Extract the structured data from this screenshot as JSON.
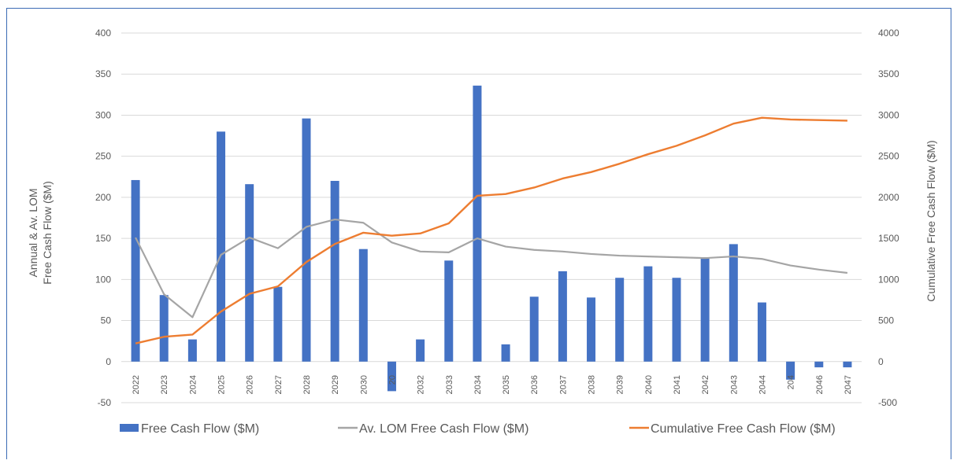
{
  "chart_data": {
    "type": "bar",
    "categories": [
      "2022",
      "2023",
      "2024",
      "2025",
      "2026",
      "2027",
      "2028",
      "2029",
      "2030",
      "2031",
      "2032",
      "2033",
      "2034",
      "2035",
      "2036",
      "2037",
      "2038",
      "2039",
      "2040",
      "2041",
      "2042",
      "2043",
      "2044",
      "2045",
      "2046",
      "2047"
    ],
    "category_labels_shown": [
      "2022",
      "2023",
      "2024",
      "2025",
      "2026",
      "2027",
      "2028",
      "2029",
      "2030",
      "20",
      "2032",
      "2033",
      "2034",
      "2035",
      "2036",
      "2037",
      "2038",
      "2039",
      "2040",
      "2041",
      "2042",
      "2043",
      "2044",
      "204",
      "2046",
      "2047"
    ],
    "series": [
      {
        "name": "Free Cash Flow ($M)",
        "type": "bar",
        "axis": "left",
        "color": "#4472c4",
        "values": [
          221,
          81,
          27,
          280,
          216,
          91,
          296,
          220,
          137,
          -36,
          27,
          123,
          336,
          21,
          79,
          110,
          78,
          102,
          116,
          102,
          127,
          143,
          72,
          -22,
          -7,
          -7
        ]
      },
      {
        "name": "Av. LOM Free Cash Flow ($M)",
        "type": "line",
        "axis": "left",
        "color": "#a5a5a5",
        "values": [
          151,
          82,
          54,
          130,
          151,
          138,
          164,
          173,
          169,
          145,
          134,
          133,
          150,
          140,
          136,
          134,
          131,
          129,
          128,
          127,
          126,
          128,
          125,
          117,
          112,
          108
        ]
      },
      {
        "name": "Cumulative Free Cash Flow ($M)",
        "type": "line",
        "axis": "right",
        "color": "#ed7d31",
        "values": [
          221,
          302,
          329,
          609,
          825,
          916,
          1212,
          1432,
          1569,
          1533,
          1560,
          1683,
          2019,
          2040,
          2119,
          2229,
          2307,
          2409,
          2525,
          2627,
          2754,
          2897,
          2969,
          2947,
          2940,
          2933
        ]
      }
    ],
    "ylabel_left": "Annual & Av. LOM\nFree Cash Flow ($M)",
    "ylabel_right": "Cumulative Free Cash Flow ($M)",
    "ylim_left": [
      -50,
      400
    ],
    "yticks_left": [
      "-50",
      "0",
      "50",
      "100",
      "150",
      "200",
      "250",
      "300",
      "350",
      "400"
    ],
    "ylim_right": [
      -500,
      4000
    ],
    "yticks_right": [
      "-500",
      "0",
      "500",
      "1000",
      "1500",
      "2000",
      "2500",
      "3000",
      "3500",
      "4000"
    ],
    "grid": true,
    "legend_position": "bottom"
  },
  "legend": {
    "bar_label": "Free Cash Flow ($M)",
    "avg_label": "Av. LOM Free Cash Flow ($M)",
    "cum_label": "Cumulative Free Cash Flow ($M)"
  },
  "axis_titles": {
    "left_line1": "Annual & Av. LOM",
    "left_line2": "Free Cash Flow ($M)",
    "right": "Cumulative Free Cash Flow ($M)"
  }
}
